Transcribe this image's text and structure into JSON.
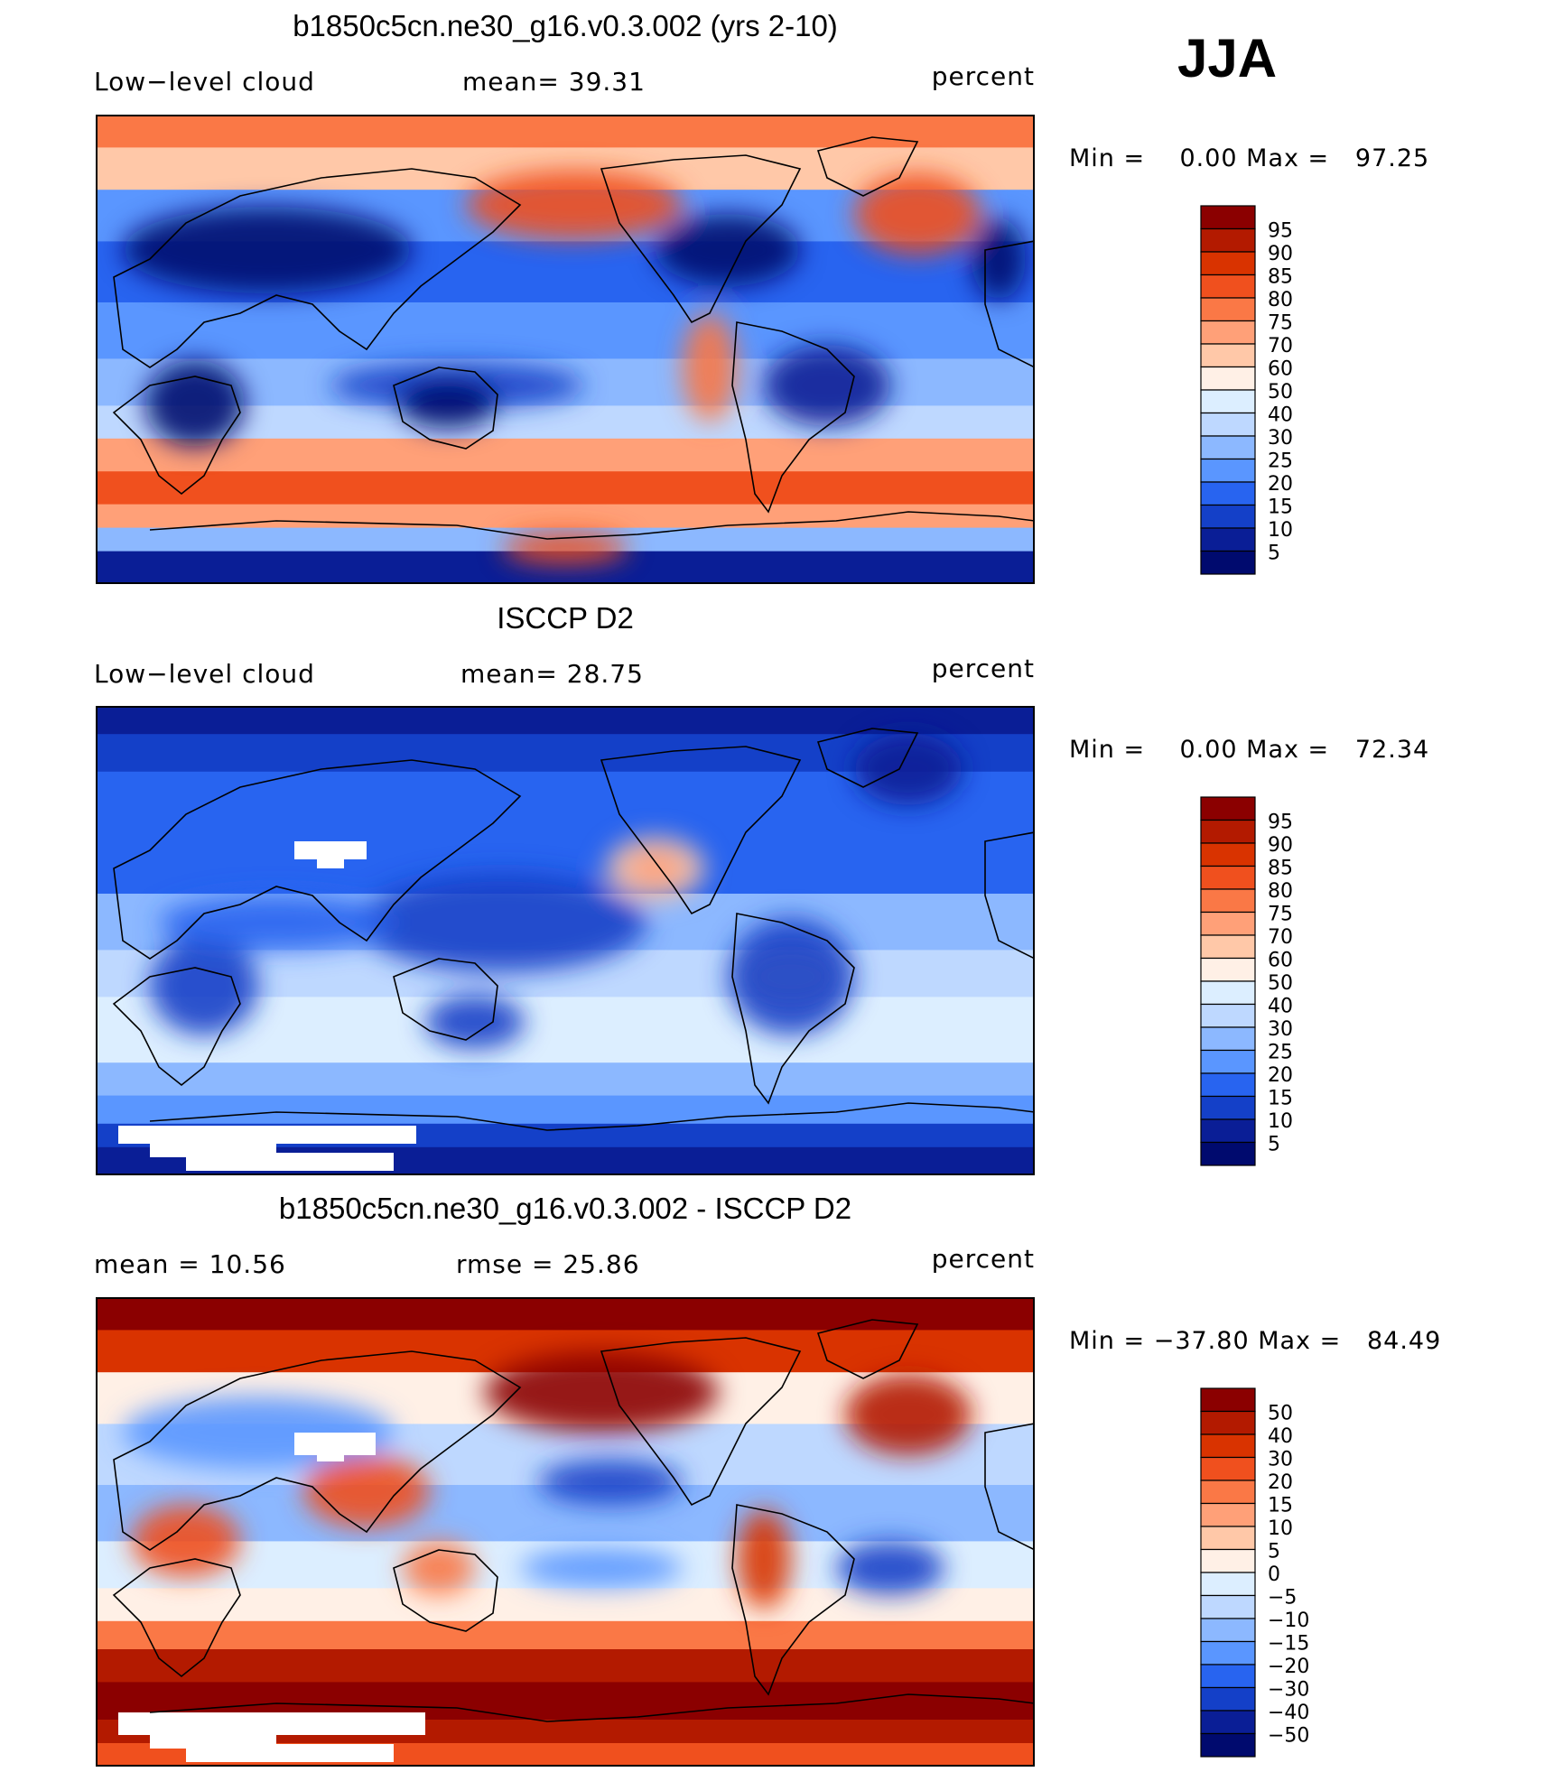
{
  "season": "JJA",
  "panels": [
    {
      "title": "b1850c5cn.ne30_g16.v0.3.002 (yrs 2-10)",
      "left_label": "Low−level cloud",
      "mid_label": "mean=   39.31",
      "right_label": "percent",
      "minmax": "Min =    0.00 Max =   97.25"
    },
    {
      "title": "ISCCP D2",
      "left_label": "Low−level cloud",
      "mid_label": "mean=   28.75",
      "right_label": "percent",
      "minmax": "Min =    0.00 Max =   72.34"
    },
    {
      "title": "b1850c5cn.ne30_g16.v0.3.002 - ISCCP D2",
      "left_label": "mean =   10.56",
      "mid_label": "rmse =   25.86",
      "right_label": "percent",
      "minmax": "Min = −37.80 Max =   84.49"
    }
  ],
  "chart_data": [
    {
      "type": "heatmap",
      "title": "b1850c5cn.ne30_g16.v0.3.002 (yrs 2-10)",
      "variable": "Low-level cloud",
      "units": "percent",
      "mean": 39.31,
      "min": 0.0,
      "max": 97.25,
      "colorbar_levels": [
        "95",
        "90",
        "85",
        "80",
        "75",
        "70",
        "60",
        "50",
        "40",
        "30",
        "25",
        "20",
        "15",
        "10",
        "5"
      ],
      "colorbar_colors": [
        "#8b0000",
        "#b31a00",
        "#d93300",
        "#f0501e",
        "#fa7846",
        "#ffa078",
        "#ffc8a8",
        "#fff0e6",
        "#dceeff",
        "#bed8ff",
        "#8cb8ff",
        "#5a96ff",
        "#2864f0",
        "#1440c8",
        "#0a1e96",
        "#000a6e"
      ]
    },
    {
      "type": "heatmap",
      "title": "ISCCP D2",
      "variable": "Low-level cloud",
      "units": "percent",
      "mean": 28.75,
      "min": 0.0,
      "max": 72.34,
      "colorbar_levels": [
        "95",
        "90",
        "85",
        "80",
        "75",
        "70",
        "60",
        "50",
        "40",
        "30",
        "25",
        "20",
        "15",
        "10",
        "5"
      ],
      "colorbar_colors": [
        "#8b0000",
        "#b31a00",
        "#d93300",
        "#f0501e",
        "#fa7846",
        "#ffa078",
        "#ffc8a8",
        "#fff0e6",
        "#dceeff",
        "#bed8ff",
        "#8cb8ff",
        "#5a96ff",
        "#2864f0",
        "#1440c8",
        "#0a1e96",
        "#000a6e"
      ]
    },
    {
      "type": "heatmap",
      "title": "b1850c5cn.ne30_g16.v0.3.002 - ISCCP D2",
      "units": "percent",
      "mean": 10.56,
      "rmse": 25.86,
      "min": -37.8,
      "max": 84.49,
      "colorbar_levels": [
        "50",
        "40",
        "30",
        "20",
        "15",
        "10",
        "5",
        "0",
        "−5",
        "−10",
        "−15",
        "−20",
        "−30",
        "−40",
        "−50"
      ],
      "colorbar_colors": [
        "#8b0000",
        "#b31a00",
        "#d93300",
        "#f0501e",
        "#fa7846",
        "#ffa078",
        "#ffc8a8",
        "#fff0e6",
        "#dceeff",
        "#bed8ff",
        "#8cb8ff",
        "#5a96ff",
        "#2864f0",
        "#1440c8",
        "#0a1e96",
        "#000a6e"
      ]
    }
  ]
}
